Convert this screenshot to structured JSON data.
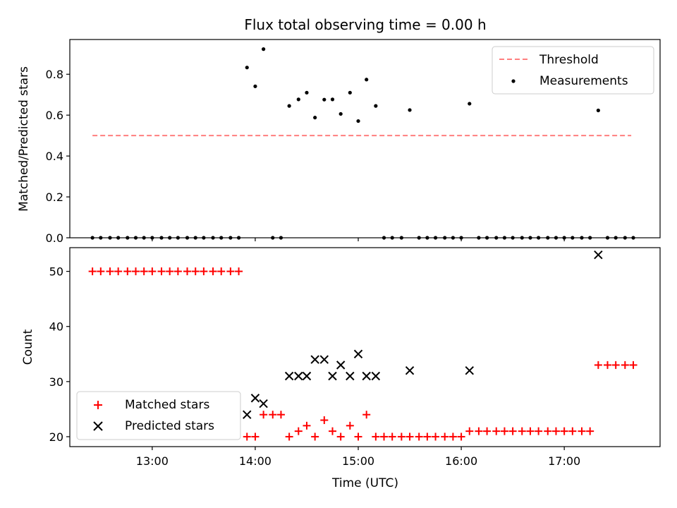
{
  "chart_data": {
    "title": "Flux total observing time = 0.00 h",
    "x_label": "Time (UTC)",
    "x_ticks": [
      "13:00",
      "14:00",
      "15:00",
      "16:00",
      "17:00"
    ],
    "x_tick_values": [
      13.0,
      14.0,
      15.0,
      16.0,
      17.0
    ],
    "x_range": [
      12.2,
      17.93
    ],
    "panels": [
      {
        "type": "scatter",
        "ylabel": "Matched/Predicted stars",
        "ylim": [
          0,
          0.97
        ],
        "y_ticks": [
          0.0,
          0.2,
          0.4,
          0.6,
          0.8
        ],
        "y_tick_labels": [
          "0.0",
          "0.2",
          "0.4",
          "0.6",
          "0.8"
        ],
        "legend_position": "top-right",
        "series": [
          {
            "name": "Threshold",
            "kind": "dashed-line",
            "color": "#ff7f7f",
            "x": [
              12.42,
              17.65
            ],
            "y": [
              0.5,
              0.5
            ]
          },
          {
            "name": "Measurements",
            "kind": "dots",
            "color": "#000000",
            "x": [
              12.42,
              12.5,
              12.59,
              12.67,
              12.76,
              12.84,
              12.92,
              13.0,
              13.09,
              13.17,
              13.25,
              13.34,
              13.42,
              13.5,
              13.59,
              13.67,
              13.76,
              13.84,
              13.92,
              14.0,
              14.08,
              14.17,
              14.25,
              14.33,
              14.42,
              14.5,
              14.58,
              14.67,
              14.75,
              14.83,
              14.92,
              15.0,
              15.08,
              15.17,
              15.25,
              15.33,
              15.42,
              15.5,
              15.59,
              15.67,
              15.75,
              15.84,
              15.92,
              16.0,
              16.08,
              16.17,
              16.25,
              16.34,
              16.42,
              16.5,
              16.59,
              16.67,
              16.75,
              16.84,
              16.92,
              17.0,
              17.08,
              17.17,
              17.25,
              17.33,
              17.42,
              17.5,
              17.59,
              17.67
            ],
            "y": [
              0,
              0,
              0,
              0,
              0,
              0,
              0,
              0,
              0,
              0,
              0,
              0,
              0,
              0,
              0,
              0,
              0,
              0,
              0.833,
              0.741,
              0.923,
              0,
              0,
              0.645,
              0.677,
              0.71,
              0.588,
              0.676,
              0.677,
              0.606,
              0.71,
              0.571,
              0.774,
              0.645,
              0,
              0,
              0,
              0.625,
              0,
              0,
              0,
              0,
              0,
              0,
              0.656,
              0,
              0,
              0,
              0,
              0,
              0,
              0,
              0,
              0,
              0,
              0,
              0,
              0,
              0,
              0.623,
              0,
              0,
              0,
              0
            ]
          }
        ]
      },
      {
        "type": "scatter",
        "ylabel": "Count",
        "ylim": [
          18.2,
          54.3
        ],
        "y_ticks": [
          20,
          30,
          40,
          50
        ],
        "y_tick_labels": [
          "20",
          "30",
          "40",
          "50"
        ],
        "legend_position": "bottom-left",
        "series": [
          {
            "name": "Matched stars",
            "kind": "plus",
            "color": "#ff0000",
            "x": [
              12.42,
              12.5,
              12.59,
              12.67,
              12.76,
              12.84,
              12.92,
              13.0,
              13.09,
              13.17,
              13.25,
              13.34,
              13.42,
              13.5,
              13.59,
              13.67,
              13.76,
              13.84,
              13.92,
              14.0,
              14.08,
              14.17,
              14.25,
              14.33,
              14.42,
              14.5,
              14.58,
              14.67,
              14.75,
              14.83,
              14.92,
              15.0,
              15.08,
              15.17,
              15.25,
              15.33,
              15.42,
              15.5,
              15.59,
              15.67,
              15.75,
              15.84,
              15.92,
              16.0,
              16.08,
              16.17,
              16.25,
              16.34,
              16.42,
              16.5,
              16.59,
              16.67,
              16.75,
              16.84,
              16.92,
              17.0,
              17.08,
              17.17,
              17.25,
              17.33,
              17.42,
              17.5,
              17.59,
              17.67
            ],
            "y": [
              50,
              50,
              50,
              50,
              50,
              50,
              50,
              50,
              50,
              50,
              50,
              50,
              50,
              50,
              50,
              50,
              50,
              50,
              20,
              20,
              24,
              24,
              24,
              20,
              21,
              22,
              20,
              23,
              21,
              20,
              22,
              20,
              24,
              20,
              20,
              20,
              20,
              20,
              20,
              20,
              20,
              20,
              20,
              20,
              21,
              21,
              21,
              21,
              21,
              21,
              21,
              21,
              21,
              21,
              21,
              21,
              21,
              21,
              21,
              33,
              33,
              33,
              33,
              33
            ]
          },
          {
            "name": "Predicted stars",
            "kind": "x",
            "color": "#000000",
            "x": [
              13.92,
              14.0,
              14.08,
              14.33,
              14.42,
              14.5,
              14.58,
              14.67,
              14.75,
              14.83,
              14.92,
              15.0,
              15.08,
              15.17,
              15.5,
              16.08,
              17.33
            ],
            "y": [
              24,
              27,
              26,
              31,
              31,
              31,
              34,
              34,
              31,
              33,
              31,
              35,
              31,
              31,
              32,
              32,
              53
            ]
          }
        ]
      }
    ]
  }
}
